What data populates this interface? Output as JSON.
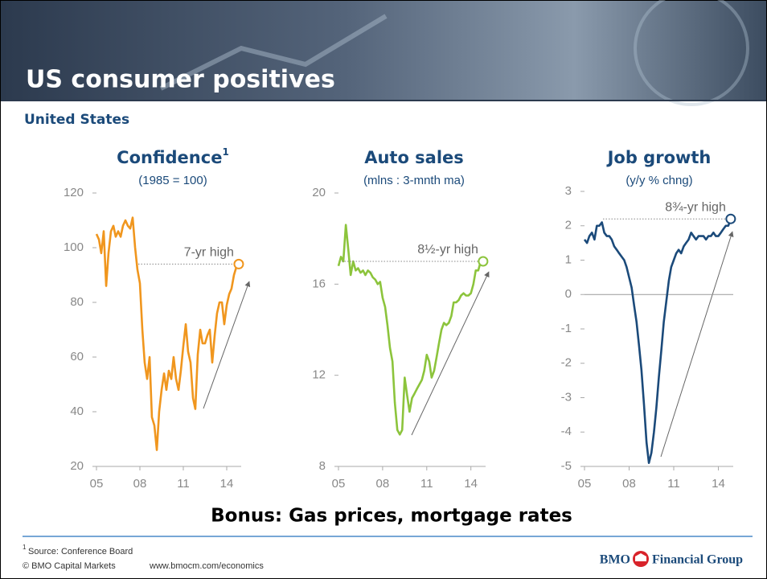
{
  "header": {
    "title": "US consumer positives",
    "subtitle": "United States"
  },
  "chart_data": [
    {
      "type": "line",
      "title": "Confidence",
      "footnote_ref": "1",
      "subtitle": "(1985 = 100)",
      "annotation": "7-yr high",
      "color": "#f0961e",
      "xlim": [
        2005,
        2015
      ],
      "xticks": [
        {
          "value": 2005,
          "label": "05"
        },
        {
          "value": 2008,
          "label": "08"
        },
        {
          "value": 2011,
          "label": "11"
        },
        {
          "value": 2014,
          "label": "14"
        }
      ],
      "ylim": [
        20,
        120
      ],
      "yticks": [
        20,
        40,
        60,
        80,
        100,
        120
      ],
      "x": [
        2005,
        2005.17,
        2005.33,
        2005.5,
        2005.67,
        2005.83,
        2006,
        2006.17,
        2006.33,
        2006.5,
        2006.67,
        2006.83,
        2007,
        2007.17,
        2007.33,
        2007.5,
        2007.67,
        2007.83,
        2008,
        2008.17,
        2008.33,
        2008.5,
        2008.67,
        2008.83,
        2009,
        2009.17,
        2009.33,
        2009.5,
        2009.67,
        2009.83,
        2010,
        2010.17,
        2010.33,
        2010.5,
        2010.67,
        2010.83,
        2011,
        2011.17,
        2011.33,
        2011.5,
        2011.67,
        2011.83,
        2012,
        2012.17,
        2012.33,
        2012.5,
        2012.67,
        2012.83,
        2013,
        2013.17,
        2013.33,
        2013.5,
        2013.67,
        2013.83,
        2014,
        2014.17,
        2014.33,
        2014.5,
        2014.67,
        2014.83
      ],
      "values": [
        105,
        103,
        98,
        106,
        86,
        98,
        106,
        108,
        104,
        106,
        104,
        108,
        110,
        108,
        107,
        111,
        100,
        92,
        87,
        70,
        58,
        52,
        60,
        38,
        35,
        26,
        40,
        48,
        54,
        48,
        55,
        52,
        60,
        52,
        48,
        55,
        64,
        72,
        62,
        58,
        45,
        41,
        61,
        70,
        65,
        65,
        68,
        70,
        58,
        68,
        76,
        80,
        80,
        72,
        79,
        83,
        85,
        90,
        93,
        94
      ]
    },
    {
      "type": "line",
      "title": "Auto sales",
      "subtitle": "(mlns : 3-mnth ma)",
      "annotation": "8½-yr high",
      "color": "#8cc43c",
      "xlim": [
        2005,
        2015
      ],
      "xticks": [
        {
          "value": 2005,
          "label": "05"
        },
        {
          "value": 2008,
          "label": "08"
        },
        {
          "value": 2011,
          "label": "11"
        },
        {
          "value": 2014,
          "label": "14"
        }
      ],
      "ylim": [
        8,
        20
      ],
      "yticks": [
        8,
        12,
        16,
        20
      ],
      "x": [
        2005,
        2005.17,
        2005.33,
        2005.5,
        2005.67,
        2005.83,
        2006,
        2006.17,
        2006.33,
        2006.5,
        2006.67,
        2006.83,
        2007,
        2007.17,
        2007.33,
        2007.5,
        2007.67,
        2007.83,
        2008,
        2008.17,
        2008.33,
        2008.5,
        2008.67,
        2008.83,
        2009,
        2009.17,
        2009.33,
        2009.5,
        2009.67,
        2009.83,
        2010,
        2010.17,
        2010.33,
        2010.5,
        2010.67,
        2010.83,
        2011,
        2011.17,
        2011.33,
        2011.5,
        2011.67,
        2011.83,
        2012,
        2012.17,
        2012.33,
        2012.5,
        2012.67,
        2012.83,
        2013,
        2013.17,
        2013.33,
        2013.5,
        2013.67,
        2013.83,
        2014,
        2014.17,
        2014.33,
        2014.5,
        2014.67,
        2014.83
      ],
      "values": [
        16.8,
        17.2,
        17.0,
        18.6,
        17.5,
        16.4,
        17.0,
        16.6,
        16.7,
        16.5,
        16.6,
        16.4,
        16.6,
        16.5,
        16.3,
        16.2,
        16.0,
        16.1,
        15.4,
        15.0,
        14.2,
        13.2,
        12.6,
        10.8,
        9.6,
        9.4,
        9.6,
        11.9,
        11.1,
        10.4,
        11.0,
        11.2,
        11.4,
        11.6,
        11.8,
        12.2,
        12.9,
        12.6,
        11.9,
        12.2,
        12.8,
        13.4,
        14.0,
        14.3,
        14.2,
        14.3,
        14.6,
        15.2,
        15.2,
        15.3,
        15.5,
        15.6,
        15.5,
        15.5,
        15.6,
        16.0,
        16.6,
        16.6,
        17.0,
        17.0
      ]
    },
    {
      "type": "line",
      "title": "Job growth",
      "subtitle": "(y/y % chng)",
      "annotation": "8¾-yr high",
      "color": "#1b4a7a",
      "xlim": [
        2005,
        2015
      ],
      "xticks": [
        {
          "value": 2005,
          "label": "05"
        },
        {
          "value": 2008,
          "label": "08"
        },
        {
          "value": 2011,
          "label": "11"
        },
        {
          "value": 2014,
          "label": "14"
        }
      ],
      "ylim": [
        -5,
        3
      ],
      "yticks": [
        -5,
        -4,
        -3,
        -2,
        -1,
        0,
        1,
        2,
        3
      ],
      "x": [
        2005,
        2005.17,
        2005.33,
        2005.5,
        2005.67,
        2005.83,
        2006,
        2006.17,
        2006.33,
        2006.5,
        2006.67,
        2006.83,
        2007,
        2007.17,
        2007.33,
        2007.5,
        2007.67,
        2007.83,
        2008,
        2008.17,
        2008.33,
        2008.5,
        2008.67,
        2008.83,
        2009,
        2009.17,
        2009.33,
        2009.5,
        2009.67,
        2009.83,
        2010,
        2010.17,
        2010.33,
        2010.5,
        2010.67,
        2010.83,
        2011,
        2011.17,
        2011.33,
        2011.5,
        2011.67,
        2011.83,
        2012,
        2012.17,
        2012.33,
        2012.5,
        2012.67,
        2012.83,
        2013,
        2013.17,
        2013.33,
        2013.5,
        2013.67,
        2013.83,
        2014,
        2014.17,
        2014.33,
        2014.5,
        2014.67,
        2014.83
      ],
      "values": [
        1.6,
        1.5,
        1.7,
        1.8,
        1.6,
        2.0,
        2.0,
        2.1,
        1.8,
        1.7,
        1.7,
        1.6,
        1.4,
        1.3,
        1.2,
        1.1,
        1.0,
        0.8,
        0.5,
        0.2,
        -0.3,
        -0.8,
        -1.5,
        -2.2,
        -3.2,
        -4.3,
        -4.9,
        -4.6,
        -4.0,
        -3.3,
        -2.4,
        -1.6,
        -0.8,
        -0.2,
        0.4,
        0.8,
        1.0,
        1.2,
        1.3,
        1.2,
        1.4,
        1.5,
        1.6,
        1.8,
        1.7,
        1.6,
        1.7,
        1.7,
        1.7,
        1.6,
        1.7,
        1.7,
        1.8,
        1.7,
        1.7,
        1.8,
        1.9,
        2.0,
        2.0,
        2.2
      ]
    }
  ],
  "bonus": "Bonus: Gas prices, mortgage rates",
  "footer": {
    "footnote_marker": "1",
    "source": "Source: Conference Board",
    "copyright": "© BMO Capital Markets",
    "url": "www.bmocm.com/economics",
    "logo_left": "BMO",
    "logo_right": "Financial Group"
  }
}
